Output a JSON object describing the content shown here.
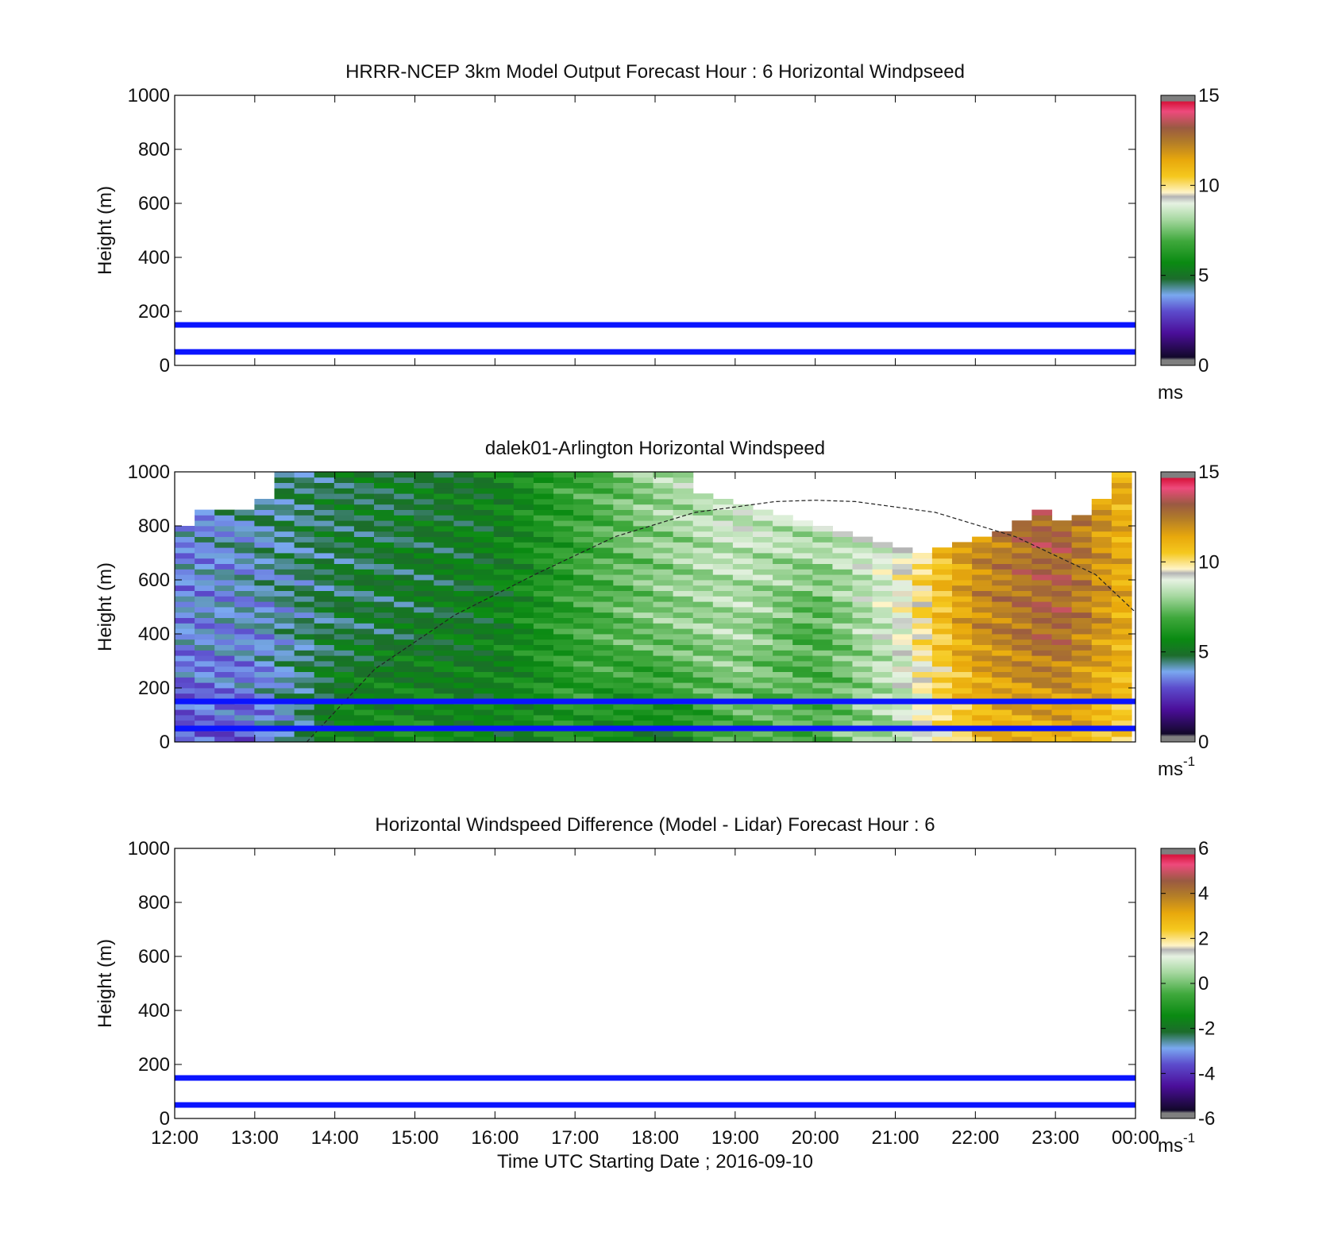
{
  "chart_data": [
    {
      "type": "heatmap",
      "title": "HRRR-NCEP 3km Model Output   Forecast Hour : 6 Horizontal Windpseed",
      "ylabel": "Height (m)",
      "xlabel": "",
      "ylim": [
        0,
        1000
      ],
      "yticks": [
        "0",
        "200",
        "400",
        "600",
        "800",
        "1000"
      ],
      "xlim_hours": [
        12,
        24
      ],
      "show_x_tick_labels": false,
      "reference_lines_m": [
        50,
        150
      ],
      "reference_line_color": "#0a14ff",
      "field": null,
      "colorbar": {
        "range": [
          0,
          15
        ],
        "ticks": [
          "0",
          "5",
          "10",
          "15"
        ],
        "unit": "ms",
        "unit_superscript": ""
      }
    },
    {
      "type": "heatmap",
      "title": "dalek01-Arlington  Horizontal Windspeed",
      "ylabel": "Height (m)",
      "xlabel": "",
      "ylim": [
        0,
        1000
      ],
      "yticks": [
        "0",
        "200",
        "400",
        "600",
        "800",
        "1000"
      ],
      "xlim_hours": [
        12,
        24
      ],
      "show_x_tick_labels": false,
      "reference_lines_m": [
        50,
        150
      ],
      "reference_line_color": "#0a14ff",
      "boundary_layer_curve": {
        "x_hours": [
          13.65,
          14.5,
          15.5,
          16.5,
          17.5,
          18.5,
          19.5,
          20.0,
          20.5,
          21.5,
          22.5,
          23.5,
          24.0
        ],
        "height_m": [
          0,
          270,
          470,
          620,
          760,
          850,
          890,
          895,
          890,
          850,
          760,
          620,
          480
        ]
      },
      "field": {
        "x_start_hours": 12.0,
        "x_end_hours": 23.95,
        "columns": 48,
        "column_tops_m": [
          800,
          860,
          860,
          860,
          900,
          1000,
          1000,
          1000,
          1000,
          1000,
          1000,
          1000,
          1000,
          1000,
          1000,
          1000,
          1000,
          1000,
          1000,
          1000,
          1000,
          1000,
          1000,
          1000,
          1000,
          1000,
          920,
          900,
          880,
          860,
          840,
          820,
          800,
          780,
          760,
          740,
          720,
          700,
          720,
          740,
          760,
          780,
          820,
          860,
          820,
          840,
          900,
          1000
        ],
        "profiles_at_hours": [
          12,
          13,
          14,
          15,
          16,
          17,
          18,
          19,
          20,
          21,
          22,
          23,
          24
        ],
        "speed_near_ground_ms": [
          2.5,
          3.0,
          5.5,
          6.0,
          5.2,
          6.2,
          5.0,
          7.0,
          7.0,
          8.2,
          11.0,
          11.5,
          10.5
        ],
        "speed_mid_ms": [
          3.5,
          3.6,
          4.6,
          4.8,
          5.2,
          6.6,
          7.6,
          8.2,
          6.8,
          9.0,
          12.2,
          13.4,
          11.2
        ],
        "speed_upper_ms": [
          3.2,
          4.2,
          4.6,
          4.8,
          5.2,
          6.6,
          8.0,
          9.0,
          9.4,
          9.6,
          12.4,
          13.6,
          11.0
        ]
      },
      "colorbar": {
        "range": [
          0,
          15
        ],
        "ticks": [
          "0",
          "5",
          "10",
          "15"
        ],
        "unit": "ms",
        "unit_superscript": "-1"
      }
    },
    {
      "type": "heatmap",
      "title": "Horizontal Windspeed Difference (Model - Lidar) Forecast Hour : 6",
      "ylabel": "Height (m)",
      "xlabel": "Time UTC  Starting Date ; 2016-09-10",
      "ylim": [
        0,
        1000
      ],
      "yticks": [
        "0",
        "200",
        "400",
        "600",
        "800",
        "1000"
      ],
      "xlim_hours": [
        12,
        24
      ],
      "show_x_tick_labels": true,
      "xticks": [
        "12:00",
        "13:00",
        "14:00",
        "15:00",
        "16:00",
        "17:00",
        "18:00",
        "19:00",
        "20:00",
        "21:00",
        "22:00",
        "23:00",
        "00:00"
      ],
      "reference_lines_m": [
        50,
        150
      ],
      "reference_line_color": "#0a14ff",
      "field": null,
      "colorbar": {
        "range": [
          -6,
          6
        ],
        "ticks": [
          "-6",
          "-4",
          "-2",
          "0",
          "2",
          "4",
          "6"
        ],
        "unit": "ms",
        "unit_superscript": "-1"
      }
    }
  ],
  "colormap_stops": [
    [
      0.0,
      "#7f7f7f"
    ],
    [
      0.02,
      "#7f7f7f"
    ],
    [
      0.03,
      "#12082a"
    ],
    [
      0.12,
      "#4b0e9a"
    ],
    [
      0.2,
      "#5c4ccc"
    ],
    [
      0.26,
      "#7aa8f0"
    ],
    [
      0.32,
      "#1c6c2c"
    ],
    [
      0.38,
      "#0a8a12"
    ],
    [
      0.46,
      "#3fa83c"
    ],
    [
      0.54,
      "#a6d8a0"
    ],
    [
      0.6,
      "#e6f2e2"
    ],
    [
      0.625,
      "#b4b4b4"
    ],
    [
      0.64,
      "#fff4c8"
    ],
    [
      0.7,
      "#f5c81e"
    ],
    [
      0.76,
      "#e8a80c"
    ],
    [
      0.83,
      "#b07a2a"
    ],
    [
      0.88,
      "#9a5a42"
    ],
    [
      0.94,
      "#ee4a7c"
    ],
    [
      0.975,
      "#d8143c"
    ],
    [
      0.98,
      "#7f7f7f"
    ],
    [
      1.0,
      "#7f7f7f"
    ]
  ],
  "curve_color": "#222222"
}
